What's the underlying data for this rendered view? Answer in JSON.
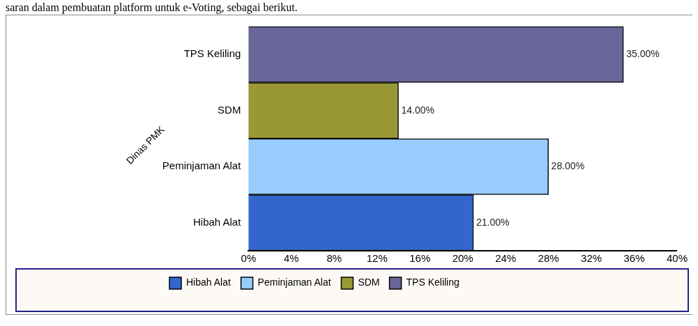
{
  "chart_data": {
    "type": "bar",
    "orientation": "horizontal",
    "ylabel": "Dinas PMK",
    "annotations": [
      "saran dalam pembuatan platform untuk e-Voting, sebagai berikut."
    ],
    "categories": [
      "TPS Keliling",
      "SDM",
      "Peminjaman Alat",
      "Hibah Alat"
    ],
    "series": [
      {
        "name": "Hibah Alat",
        "color": "#3366cc",
        "values": [
          null,
          null,
          null,
          21
        ],
        "value_labels": [
          null,
          null,
          null,
          "21.00%"
        ]
      },
      {
        "name": "Peminjaman Alat",
        "color": "#99ccfe",
        "values": [
          null,
          null,
          28,
          null
        ],
        "value_labels": [
          null,
          null,
          "28.00%",
          null
        ]
      },
      {
        "name": "SDM",
        "color": "#9a9834",
        "values": [
          null,
          14,
          null,
          null
        ],
        "value_labels": [
          null,
          "14.00%",
          null,
          null
        ]
      },
      {
        "name": "TPS Keliling",
        "color": "#686699",
        "values": [
          35,
          null,
          null,
          null
        ],
        "value_labels": [
          "35.00%",
          null,
          null,
          null
        ]
      }
    ],
    "xlim": [
      0,
      40
    ],
    "xticks": [
      {
        "value": 0,
        "label": "0%"
      },
      {
        "value": 4,
        "label": "4%"
      },
      {
        "value": 8,
        "label": "8%"
      },
      {
        "value": 12,
        "label": "12%"
      },
      {
        "value": 16,
        "label": "16%"
      },
      {
        "value": 20,
        "label": "20%"
      },
      {
        "value": 24,
        "label": "24%"
      },
      {
        "value": 28,
        "label": "28%"
      },
      {
        "value": 32,
        "label": "32%"
      },
      {
        "value": 36,
        "label": "36%"
      },
      {
        "value": 40,
        "label": "40%"
      }
    ],
    "grid": false,
    "legend": "bottom"
  }
}
